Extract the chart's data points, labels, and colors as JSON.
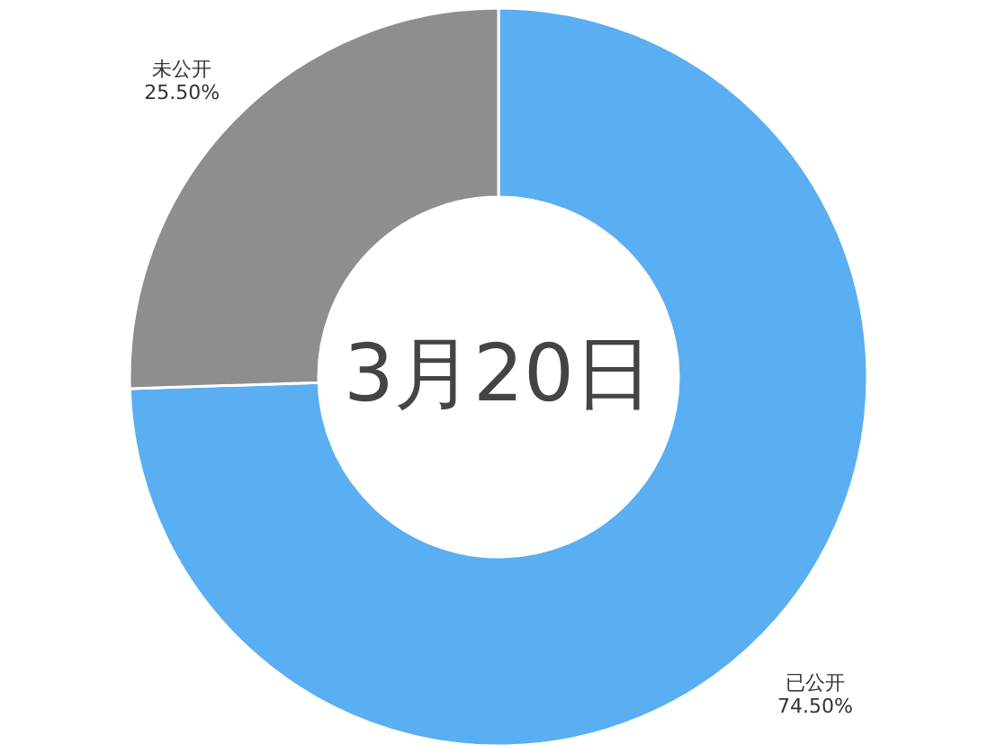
{
  "chart_data": {
    "type": "donut",
    "title": "3月20日",
    "categories": [
      "已公开",
      "未公开"
    ],
    "values": [
      74.5,
      25.5
    ],
    "colors": [
      "#5aaef2",
      "#8e8e8e"
    ],
    "value_labels": [
      "74.50%",
      "25.50%"
    ]
  }
}
